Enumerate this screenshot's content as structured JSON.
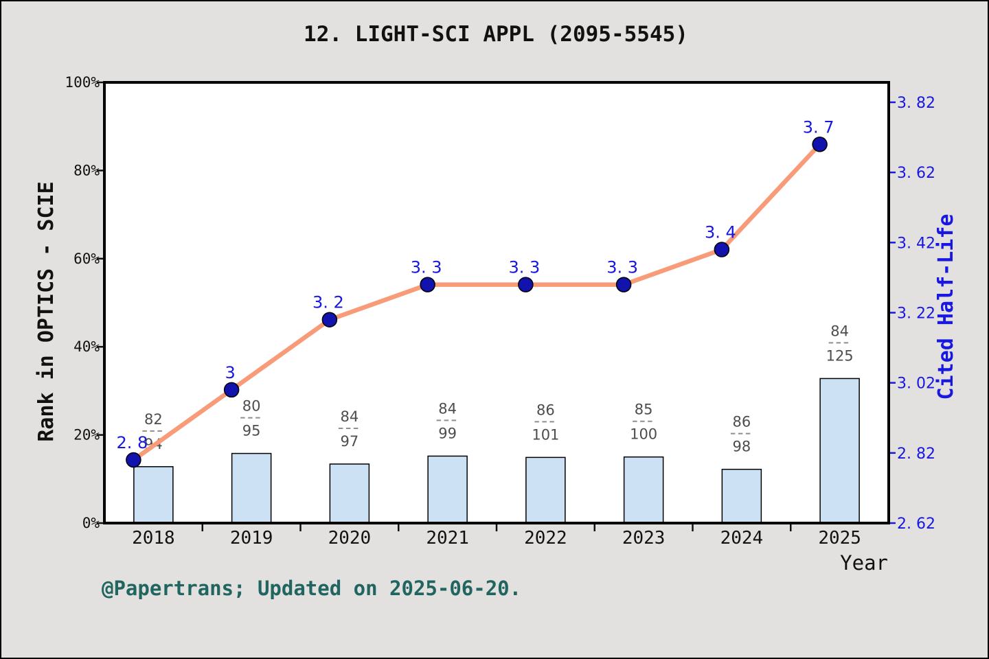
{
  "title": "12. LIGHT-SCI APPL (2095-5545)",
  "footer": "@Papertrans; Updated on 2025-06-20.",
  "colors": {
    "background": "#e2e1df",
    "plot_background": "#ffffff",
    "frame": "#000000",
    "bar_fill": "#cde1f5",
    "bar_edge": "#000000",
    "line": "#f89b78",
    "marker_fill": "#1212ad",
    "marker_edge": "#000000",
    "blue_text": "#1818e0",
    "axis_text": "#111111",
    "fraction_text": "#4d4d4d",
    "fraction_dash": "#8e8e8e",
    "footer_text": "#20655f"
  },
  "chart_data": {
    "type": "combo-bar-line-dual-axis",
    "categories": [
      "2018",
      "2019",
      "2020",
      "2021",
      "2022",
      "2023",
      "2024",
      "2025"
    ],
    "x_axis_label": "Year",
    "left_axis": {
      "label": "Rank in OPTICS - SCIE",
      "tick_labels": [
        "0%",
        "20%",
        "40%",
        "60%",
        "80%",
        "100%"
      ],
      "tick_values": [
        0,
        20,
        40,
        60,
        80,
        100
      ],
      "range": [
        0,
        100
      ]
    },
    "right_axis": {
      "label": "Cited Half-Life",
      "tick_labels": [
        "2. 62",
        "2. 82",
        "3. 02",
        "3. 22",
        "3. 42",
        "3. 62",
        "3. 82"
      ],
      "tick_values": [
        2.62,
        2.82,
        3.02,
        3.22,
        3.42,
        3.62,
        3.82
      ],
      "range": [
        2.62,
        3.82
      ]
    },
    "bar_series": {
      "name": "rank-fraction-bars",
      "fraction_numerators": [
        82,
        80,
        84,
        84,
        86,
        85,
        86,
        84
      ],
      "fraction_denominators": [
        94,
        95,
        97,
        99,
        101,
        100,
        98,
        125
      ],
      "percents": [
        12.8,
        15.8,
        13.4,
        15.2,
        14.9,
        15.0,
        12.2,
        32.8
      ]
    },
    "line_series": {
      "name": "cited-half-life",
      "values": [
        2.8,
        3.0,
        3.2,
        3.3,
        3.3,
        3.3,
        3.4,
        3.7
      ],
      "point_labels": [
        "2. 8",
        "3",
        "3. 2",
        "3. 3",
        "3. 3",
        "3. 3",
        "3. 4",
        "3. 7"
      ]
    }
  }
}
